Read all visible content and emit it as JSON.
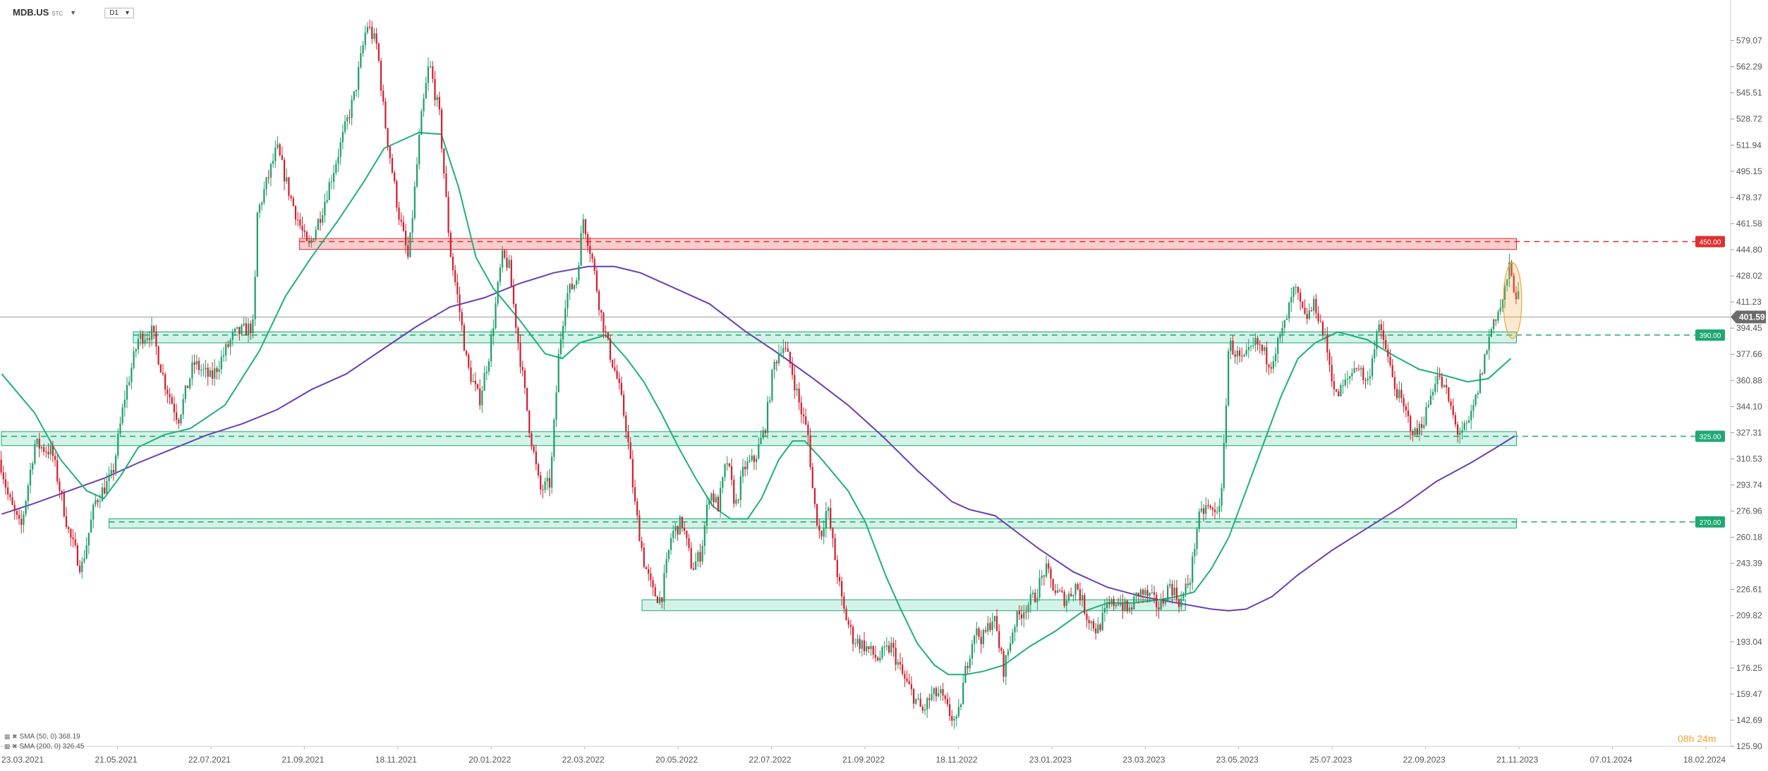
{
  "header": {
    "symbol": "MDB.US",
    "subtitle": "STC",
    "timeframe": "D1"
  },
  "legend": [
    {
      "label": "SMA (50, 0) 368.19",
      "color": "#1fb07a"
    },
    {
      "label": "SMA (200, 0) 326.45",
      "color": "#6a3fb5"
    }
  ],
  "countdown": {
    "hours": "08",
    "h": "h",
    "minutes": "24",
    "m": "m"
  },
  "colors": {
    "up": "#1f9e6a",
    "down": "#d0202f",
    "resistance": "#e03030",
    "support": "#1fa873",
    "sma50": "#1fb07a",
    "sma200": "#6a3fb5",
    "highlight": "#f4a640"
  },
  "chart_data": {
    "type": "candlestick",
    "title": "",
    "ylim": [
      125.9,
      597
    ],
    "y_ticks": [
      "579.07",
      "562.29",
      "545.51",
      "528.72",
      "511.94",
      "495.15",
      "478.37",
      "461.58",
      "444.80",
      "428.02",
      "411.23",
      "394.45",
      "377.66",
      "360.88",
      "344.10",
      "327.31",
      "310.53",
      "293.74",
      "276.96",
      "260.18",
      "243.39",
      "226.61",
      "209.82",
      "193.04",
      "176.25",
      "159.47",
      "142.69",
      "125.90"
    ],
    "x_labels": [
      "23.03.2021",
      "21.05.2021",
      "22.07.2021",
      "21.09.2021",
      "18.11.2021",
      "20.01.2022",
      "22.03.2022",
      "20.05.2022",
      "22.07.2022",
      "21.09.2022",
      "18.11.2022",
      "23.01.2023",
      "23.03.2023",
      "23.05.2023",
      "25.07.2023",
      "22.09.2023",
      "21.11.2023",
      "07.01.2024",
      "18.02.2024"
    ],
    "current_price": "401.59",
    "levels": [
      {
        "label": "450.00",
        "value": 450,
        "zone": [
          445,
          452
        ],
        "kind": "resistance",
        "from": 0.173
      },
      {
        "label": "390.00",
        "value": 390,
        "zone": [
          385,
          392
        ],
        "kind": "support",
        "from": 0.077
      },
      {
        "label": "325.00",
        "value": 325,
        "zone": [
          319,
          328
        ],
        "kind": "support",
        "from": 0.0
      },
      {
        "label": "270.00",
        "value": 270,
        "zone": [
          266,
          272
        ],
        "kind": "support",
        "from": 0.063
      }
    ],
    "demand_zone": {
      "range": [
        213,
        220
      ],
      "from": 0.371,
      "to": 0.685
    },
    "anchors": [
      [
        0,
        310
      ],
      [
        0.005,
        285
      ],
      [
        0.012,
        265
      ],
      [
        0.02,
        320
      ],
      [
        0.03,
        315
      ],
      [
        0.04,
        262
      ],
      [
        0.047,
        240
      ],
      [
        0.055,
        283
      ],
      [
        0.065,
        300
      ],
      [
        0.072,
        350
      ],
      [
        0.08,
        388
      ],
      [
        0.088,
        392
      ],
      [
        0.095,
        360
      ],
      [
        0.103,
        336
      ],
      [
        0.112,
        372
      ],
      [
        0.122,
        362
      ],
      [
        0.135,
        390
      ],
      [
        0.147,
        396
      ],
      [
        0.148,
        465
      ],
      [
        0.16,
        510
      ],
      [
        0.168,
        478
      ],
      [
        0.178,
        445
      ],
      [
        0.186,
        470
      ],
      [
        0.195,
        505
      ],
      [
        0.205,
        545
      ],
      [
        0.212,
        590
      ],
      [
        0.218,
        575
      ],
      [
        0.222,
        530
      ],
      [
        0.23,
        470
      ],
      [
        0.236,
        438
      ],
      [
        0.243,
        525
      ],
      [
        0.248,
        565
      ],
      [
        0.254,
        530
      ],
      [
        0.26,
        445
      ],
      [
        0.265,
        410
      ],
      [
        0.27,
        370
      ],
      [
        0.277,
        348
      ],
      [
        0.283,
        380
      ],
      [
        0.29,
        440
      ],
      [
        0.294,
        435
      ],
      [
        0.3,
        380
      ],
      [
        0.306,
        330
      ],
      [
        0.312,
        290
      ],
      [
        0.318,
        295
      ],
      [
        0.323,
        380
      ],
      [
        0.327,
        415
      ],
      [
        0.333,
        425
      ],
      [
        0.337,
        465
      ],
      [
        0.342,
        440
      ],
      [
        0.347,
        405
      ],
      [
        0.352,
        380
      ],
      [
        0.357,
        360
      ],
      [
        0.362,
        330
      ],
      [
        0.367,
        280
      ],
      [
        0.372,
        245
      ],
      [
        0.377,
        225
      ],
      [
        0.382,
        220
      ],
      [
        0.388,
        262
      ],
      [
        0.394,
        270
      ],
      [
        0.4,
        240
      ],
      [
        0.405,
        250
      ],
      [
        0.41,
        290
      ],
      [
        0.415,
        280
      ],
      [
        0.42,
        310
      ],
      [
        0.425,
        280
      ],
      [
        0.43,
        305
      ],
      [
        0.436,
        310
      ],
      [
        0.442,
        330
      ],
      [
        0.447,
        370
      ],
      [
        0.452,
        385
      ],
      [
        0.457,
        370
      ],
      [
        0.462,
        345
      ],
      [
        0.467,
        325
      ],
      [
        0.47,
        285
      ],
      [
        0.474,
        260
      ],
      [
        0.478,
        280
      ],
      [
        0.482,
        250
      ],
      [
        0.487,
        215
      ],
      [
        0.493,
        195
      ],
      [
        0.5,
        190
      ],
      [
        0.507,
        182
      ],
      [
        0.515,
        190
      ],
      [
        0.522,
        170
      ],
      [
        0.528,
        158
      ],
      [
        0.533,
        148
      ],
      [
        0.538,
        158
      ],
      [
        0.543,
        160
      ],
      [
        0.548,
        148
      ],
      [
        0.553,
        140
      ],
      [
        0.558,
        175
      ],
      [
        0.563,
        200
      ],
      [
        0.568,
        195
      ],
      [
        0.574,
        210
      ],
      [
        0.58,
        175
      ],
      [
        0.586,
        205
      ],
      [
        0.592,
        215
      ],
      [
        0.598,
        222
      ],
      [
        0.604,
        240
      ],
      [
        0.61,
        225
      ],
      [
        0.616,
        220
      ],
      [
        0.622,
        230
      ],
      [
        0.628,
        210
      ],
      [
        0.634,
        200
      ],
      [
        0.64,
        215
      ],
      [
        0.646,
        220
      ],
      [
        0.652,
        212
      ],
      [
        0.658,
        225
      ],
      [
        0.664,
        222
      ],
      [
        0.67,
        215
      ],
      [
        0.676,
        230
      ],
      [
        0.682,
        218
      ],
      [
        0.688,
        235
      ],
      [
        0.692,
        270
      ],
      [
        0.697,
        280
      ],
      [
        0.702,
        275
      ],
      [
        0.706,
        288
      ],
      [
        0.71,
        385
      ],
      [
        0.718,
        372
      ],
      [
        0.726,
        385
      ],
      [
        0.734,
        372
      ],
      [
        0.742,
        395
      ],
      [
        0.748,
        420
      ],
      [
        0.754,
        400
      ],
      [
        0.76,
        410
      ],
      [
        0.766,
        385
      ],
      [
        0.772,
        350
      ],
      [
        0.778,
        360
      ],
      [
        0.784,
        372
      ],
      [
        0.79,
        358
      ],
      [
        0.796,
        395
      ],
      [
        0.8,
        385
      ],
      [
        0.805,
        360
      ],
      [
        0.812,
        340
      ],
      [
        0.818,
        325
      ],
      [
        0.824,
        340
      ],
      [
        0.83,
        365
      ],
      [
        0.836,
        352
      ],
      [
        0.842,
        328
      ],
      [
        0.848,
        330
      ],
      [
        0.853,
        350
      ],
      [
        0.858,
        376
      ],
      [
        0.863,
        400
      ],
      [
        0.868,
        410
      ],
      [
        0.872,
        433
      ],
      [
        0.875,
        420
      ],
      [
        0.878,
        412
      ]
    ],
    "sma50": [
      [
        0.001,
        365
      ],
      [
        0.02,
        340
      ],
      [
        0.035,
        310
      ],
      [
        0.05,
        290
      ],
      [
        0.06,
        285
      ],
      [
        0.07,
        300
      ],
      [
        0.08,
        318
      ],
      [
        0.095,
        326
      ],
      [
        0.11,
        330
      ],
      [
        0.13,
        345
      ],
      [
        0.15,
        380
      ],
      [
        0.165,
        415
      ],
      [
        0.18,
        440
      ],
      [
        0.195,
        463
      ],
      [
        0.21,
        488
      ],
      [
        0.222,
        510
      ],
      [
        0.232,
        515
      ],
      [
        0.242,
        520
      ],
      [
        0.255,
        519
      ],
      [
        0.265,
        485
      ],
      [
        0.275,
        440
      ],
      [
        0.285,
        420
      ],
      [
        0.3,
        400
      ],
      [
        0.315,
        378
      ],
      [
        0.325,
        375
      ],
      [
        0.335,
        385
      ],
      [
        0.35,
        390
      ],
      [
        0.362,
        375
      ],
      [
        0.372,
        360
      ],
      [
        0.382,
        340
      ],
      [
        0.392,
        318
      ],
      [
        0.402,
        298
      ],
      [
        0.412,
        280
      ],
      [
        0.422,
        272
      ],
      [
        0.432,
        272
      ],
      [
        0.44,
        285
      ],
      [
        0.45,
        310
      ],
      [
        0.458,
        322
      ],
      [
        0.465,
        322
      ],
      [
        0.475,
        310
      ],
      [
        0.49,
        290
      ],
      [
        0.5,
        270
      ],
      [
        0.512,
        235
      ],
      [
        0.52,
        215
      ],
      [
        0.53,
        192
      ],
      [
        0.54,
        178
      ],
      [
        0.548,
        172
      ],
      [
        0.558,
        172
      ],
      [
        0.568,
        174
      ],
      [
        0.58,
        178
      ],
      [
        0.595,
        190
      ],
      [
        0.61,
        200
      ],
      [
        0.625,
        212
      ],
      [
        0.64,
        218
      ],
      [
        0.655,
        218
      ],
      [
        0.67,
        220
      ],
      [
        0.68,
        222
      ],
      [
        0.69,
        225
      ],
      [
        0.7,
        240
      ],
      [
        0.71,
        260
      ],
      [
        0.72,
        290
      ],
      [
        0.73,
        320
      ],
      [
        0.74,
        350
      ],
      [
        0.75,
        375
      ],
      [
        0.76,
        385
      ],
      [
        0.773,
        392
      ],
      [
        0.79,
        387
      ],
      [
        0.805,
        377
      ],
      [
        0.82,
        368
      ],
      [
        0.835,
        364
      ],
      [
        0.848,
        360
      ],
      [
        0.86,
        362
      ],
      [
        0.873,
        375
      ]
    ],
    "sma200": [
      [
        0.001,
        275
      ],
      [
        0.02,
        282
      ],
      [
        0.04,
        290
      ],
      [
        0.06,
        298
      ],
      [
        0.08,
        308
      ],
      [
        0.1,
        317
      ],
      [
        0.12,
        326
      ],
      [
        0.14,
        333
      ],
      [
        0.16,
        342
      ],
      [
        0.18,
        355
      ],
      [
        0.2,
        365
      ],
      [
        0.22,
        380
      ],
      [
        0.24,
        395
      ],
      [
        0.26,
        408
      ],
      [
        0.28,
        414
      ],
      [
        0.3,
        423
      ],
      [
        0.32,
        430
      ],
      [
        0.34,
        434
      ],
      [
        0.355,
        434
      ],
      [
        0.37,
        430
      ],
      [
        0.39,
        420
      ],
      [
        0.41,
        410
      ],
      [
        0.43,
        393
      ],
      [
        0.45,
        378
      ],
      [
        0.47,
        362
      ],
      [
        0.49,
        345
      ],
      [
        0.51,
        325
      ],
      [
        0.53,
        303
      ],
      [
        0.55,
        283
      ],
      [
        0.56,
        278
      ],
      [
        0.575,
        274
      ],
      [
        0.6,
        253
      ],
      [
        0.62,
        238
      ],
      [
        0.64,
        228
      ],
      [
        0.66,
        222
      ],
      [
        0.68,
        218
      ],
      [
        0.7,
        214
      ],
      [
        0.71,
        213
      ],
      [
        0.72,
        214
      ],
      [
        0.735,
        222
      ],
      [
        0.75,
        236
      ],
      [
        0.77,
        252
      ],
      [
        0.79,
        266
      ],
      [
        0.81,
        280
      ],
      [
        0.83,
        296
      ],
      [
        0.85,
        308
      ],
      [
        0.865,
        318
      ],
      [
        0.875,
        325
      ]
    ]
  }
}
